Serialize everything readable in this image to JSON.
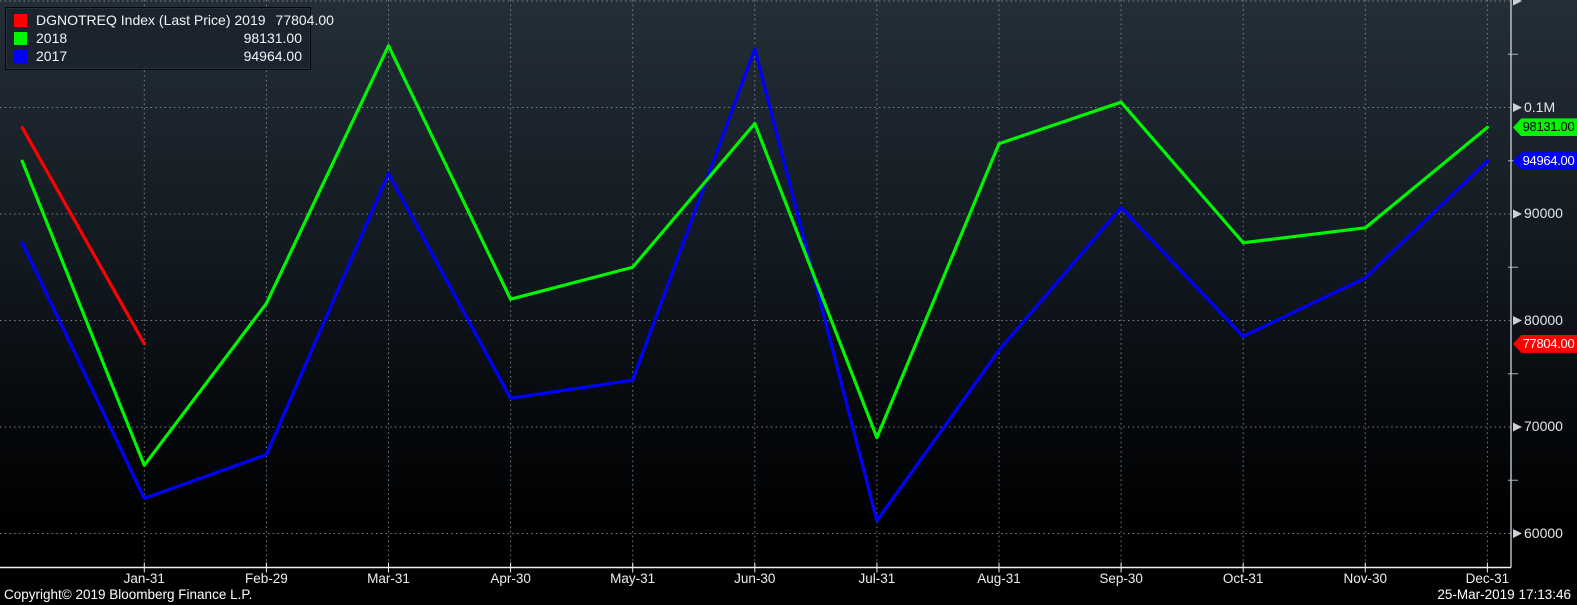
{
  "window": {
    "footer_copyright": "Copyright© 2019 Bloomberg Finance L.P.",
    "footer_timestamp": "25-Mar-2019 17:13:46"
  },
  "legend": {
    "rows": [
      {
        "label": "DGNOTREQ Index (Last Price) 2019",
        "value": "77804.00",
        "color": "#ff0000"
      },
      {
        "label": "2018",
        "value": "98131.00",
        "color": "#00f600"
      },
      {
        "label": "2017",
        "value": "94964.00",
        "color": "#0000ff"
      }
    ]
  },
  "chart_data": {
    "type": "line",
    "x_categories": [
      "Jan-31",
      "Feb-29",
      "Mar-31",
      "Apr-30",
      "May-31",
      "Jun-30",
      "Jul-31",
      "Aug-31",
      "Sep-30",
      "Oct-31",
      "Nov-30",
      "Dec-31"
    ],
    "series_note": "Each series starts one interval left of Jan-31 (prior year-end anchor point).",
    "series": [
      {
        "name": "DGNOTREQ Index (Last Price) 2019",
        "color": "#ff0000",
        "start_value": 98131,
        "values_by_month": [
          77804
        ]
      },
      {
        "name": "2018",
        "color": "#00f600",
        "start_value": 94964,
        "values_by_month": [
          66400,
          81600,
          105800,
          82000,
          85000,
          98500,
          69000,
          96600,
          100500,
          87300,
          88700,
          98131
        ]
      },
      {
        "name": "2017",
        "color": "#0000ff",
        "start_value": 87300,
        "values_by_month": [
          63300,
          67400,
          93800,
          72700,
          74400,
          105500,
          61200,
          77200,
          90600,
          78500,
          84000,
          94964
        ]
      }
    ],
    "y_axis": {
      "side": "right",
      "tick_labels": [
        {
          "text": "0.1M",
          "value": 100000
        },
        {
          "text": "90000",
          "value": 90000
        },
        {
          "text": "80000",
          "value": 80000
        },
        {
          "text": "70000",
          "value": 70000
        },
        {
          "text": "60000",
          "value": 60000
        }
      ],
      "unlabeled_top_gridline": 110000,
      "minor_ticks": [
        105000,
        95000,
        85000,
        75000,
        65000
      ],
      "ylim": [
        57500,
        110000
      ]
    },
    "last_price_tags": [
      {
        "text": "98131.00",
        "value": 98131,
        "bg": "#00f600",
        "fg": "#000000"
      },
      {
        "text": "94964.00",
        "value": 94964,
        "bg": "#0000ff",
        "fg": "#ffffff"
      },
      {
        "text": "77804.00",
        "value": 77804,
        "bg": "#ff0000",
        "fg": "#ffffff"
      }
    ],
    "grid": true,
    "legend_position": "top-left",
    "colors": {
      "grid": "#8d959c",
      "spine": "#d7dbde",
      "tick_text": "#e4e7e9",
      "bg_top": "#242e37",
      "bg_bottom": "#000000"
    }
  }
}
